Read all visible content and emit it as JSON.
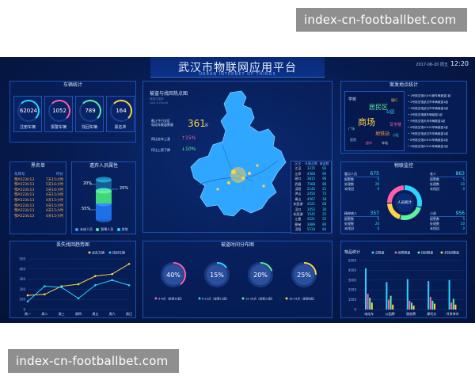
{
  "watermark": {
    "top": "index-cn-footballbet.com",
    "bottom": "index-cn-footballbet.com"
  },
  "header": {
    "title": "武汉市物联网应用平台",
    "subtitle": "URBAN INTERNET OF THINGS",
    "date": "2017-06-20 周五",
    "time": "12:20"
  },
  "vehicle_stats": {
    "title": "车辆统计",
    "items": [
      {
        "value": "62024",
        "label": "注册车辆",
        "color": "#2fd3ff"
      },
      {
        "value": "1052",
        "label": "报警车辆",
        "color": "#ff5fa8"
      },
      {
        "value": "789",
        "label": "找回车辆",
        "color": "#5cf0a0"
      },
      {
        "value": "164",
        "label": "黑名单",
        "color": "#ffd24a"
      }
    ]
  },
  "blacklist": {
    "title": "黑名单",
    "headers": [
      "车牌号",
      "时长"
    ],
    "rows": [
      [
        "鄂A523U13",
        "7天15小时"
      ],
      [
        "鄂A523U13",
        "5天16小时"
      ],
      [
        "鄂A523U13",
        "5天16小时"
      ],
      [
        "鄂A523U13",
        "4天15小时"
      ],
      [
        "鄂A523U13",
        "4天15小时"
      ],
      [
        "鄂A523U13",
        "4天15小时"
      ],
      [
        "鄂A523U13",
        "4天15小时"
      ],
      [
        "鄂A523U13",
        "4天15小时"
      ]
    ]
  },
  "lost_people": {
    "title": "遗弃人员属性",
    "pct_top": "20%",
    "pct_right": "25%",
    "pct_bottom": "55%",
    "legend": [
      "未成人员",
      "智障人员",
      "其他"
    ],
    "colors": [
      "#3aa0ff",
      "#5cf0a0",
      "#2fd3ff"
    ]
  },
  "map": {
    "title": "被盗与找回热点图",
    "tiny1": "被盗与找回",
    "tiny2": "Lost & Found",
    "summary_label": "截止今日全区\n电动车被盗数量",
    "summary_value": "361",
    "summary_unit": "起",
    "stat1_label": "同比去年上涨",
    "stat1_value": "15%",
    "stat2_label": "环比上家下降",
    "stat2_value": "10%"
  },
  "districts": {
    "headers": [
      "区名",
      "车辆总数",
      "被盗数"
    ],
    "rows": [
      [
        "江汉",
        "3315",
        "93"
      ],
      [
        "江岸",
        "4566",
        "90"
      ],
      [
        "硚口",
        "3815",
        "96"
      ],
      [
        "武昌",
        "7568",
        "88"
      ],
      [
        "汉阳",
        "2145",
        "21"
      ],
      [
        "洪山",
        "2456",
        "73"
      ],
      [
        "青山",
        "4567",
        "18"
      ],
      [
        "东西湖",
        "4521",
        "68"
      ],
      [
        "汉口",
        "3452",
        "30"
      ],
      [
        "东西湖",
        "1545",
        "25"
      ],
      [
        "江夏",
        "4521",
        "55"
      ],
      [
        "蔡甸",
        "3689",
        "80"
      ],
      [
        "汉阳",
        "5234",
        "84"
      ]
    ]
  },
  "hotspot": {
    "title": "案发地点统计",
    "cloud": [
      {
        "text": "居民区",
        "color": "#5cf0a0",
        "size": 8
      },
      {
        "text": "商场",
        "color": "#ffd24a",
        "size": 11
      },
      {
        "text": "地铁站",
        "color": "#ff9f43",
        "size": 6
      },
      {
        "text": "学校",
        "color": "#cfe3ff",
        "size": 5
      },
      {
        "text": "公园",
        "color": "#39e6ff",
        "size": 5
      },
      {
        "text": "写字楼",
        "color": "#ff5fa8",
        "size": 5
      },
      {
        "text": "医院",
        "color": "#9ac0ff",
        "size": 4
      },
      {
        "text": "车站",
        "color": "#cfe3ff",
        "size": 4
      },
      {
        "text": "银行",
        "color": "#ffd24a",
        "size": 4
      },
      {
        "text": "广场",
        "color": "#5cf0a0",
        "size": 4
      },
      {
        "text": "超市",
        "color": "#ff5fa8",
        "size": 4
      },
      {
        "text": "小区",
        "color": "#39e6ff",
        "size": 4
      }
    ],
    "list": [
      "1号航空馆SOHO被车辆被盗1起",
      "2号航空馆武汉市车辆被盗1起",
      "3号航空馆武汉市车辆被盗1起",
      "4号航空馆被车辆被盗1起",
      "5号航空馆天河车辆被盗1起",
      "6号航空馆SOHO车辆被盗1起",
      "7号航空馆武汉市车辆被盗1起",
      "8号航空馆SOHO车辆被盗1起",
      "9号航空馆SOHO车辆被盗1起"
    ]
  },
  "monitor": {
    "title": "物联监控",
    "center_label": "人员统计",
    "groups": [
      {
        "name": "重点人员",
        "value": "675",
        "rows": [
          [
            "报警数",
            "5"
          ],
          [
            "处理数",
            "20"
          ],
          [
            "未找回",
            "0"
          ]
        ]
      },
      {
        "name": "老人",
        "value": "863",
        "rows": [
          [
            "报警数",
            "5"
          ],
          [
            "处理数",
            "20"
          ],
          [
            "未找回",
            "0"
          ]
        ]
      },
      {
        "name": "精神病人",
        "value": "357",
        "rows": [
          [
            "报警数",
            "5"
          ],
          [
            "处理数",
            "20"
          ],
          [
            "未找回",
            "0"
          ]
        ]
      },
      {
        "name": "小孩",
        "value": "956",
        "rows": [
          [
            "报警数",
            "5"
          ],
          [
            "处理数",
            "20"
          ],
          [
            "未找回",
            "0"
          ]
        ]
      }
    ],
    "donut": [
      {
        "value": 30,
        "color": "#2fd3ff"
      },
      {
        "value": 25,
        "color": "#5cf0a0"
      },
      {
        "value": 20,
        "color": "#ffd24a"
      },
      {
        "value": 25,
        "color": "#ff5fa8"
      }
    ]
  },
  "trend_chart": {
    "title": "丢失找回趋势图",
    "chart_data": {
      "type": "line",
      "categories": [
        "周一",
        "周二",
        "周三",
        "周四",
        "周五",
        "周六",
        "周日"
      ],
      "series": [
        {
          "name": "丢失车辆",
          "values": [
            140,
            150,
            230,
            250,
            330,
            350,
            450
          ],
          "color": "#ffd24a"
        },
        {
          "name": "找回车辆",
          "values": [
            80,
            230,
            220,
            110,
            240,
            290,
            240
          ],
          "color": "#2fd3ff"
        }
      ],
      "ylim": [
        0,
        500
      ],
      "yticks": [
        0,
        100,
        200,
        300,
        400,
        500
      ]
    }
  },
  "time_dist": {
    "title": "被盗时间分布图",
    "items": [
      {
        "value": "40%",
        "label": "3-6点（发案35起）",
        "color": "#ff5fa8",
        "fill": 0.4
      },
      {
        "value": "15%",
        "label": "6-12点（发案15起）",
        "color": "#2fd3ff",
        "fill": 0.15
      },
      {
        "value": "20%",
        "label": "12-18点（发案12起）",
        "color": "#5cf0a0",
        "fill": 0.2
      },
      {
        "value": "25%",
        "label": "18-24点（发案8起）",
        "color": "#ffd24a",
        "fill": 0.25
      }
    ]
  },
  "goods_chart": {
    "title": "物品统计",
    "chart_data": {
      "type": "bar",
      "categories": [
        "电动车",
        "公园牌",
        "银杏牌",
        "摩托头",
        "共享单车"
      ],
      "series": [
        {
          "name": "总数量",
          "values": [
            4200,
            2800,
            3100,
            2900,
            3000
          ],
          "color": "#2fd3ff"
        },
        {
          "name": "报警数量",
          "values": [
            1600,
            1000,
            900,
            1300,
            700
          ],
          "color": "#ff5fa8"
        },
        {
          "name": "找回数量",
          "values": [
            1200,
            1400,
            700,
            900,
            1100
          ],
          "color": "#5cf0a0"
        },
        {
          "name": "未找回数量",
          "values": [
            700,
            500,
            400,
            600,
            500
          ],
          "color": "#ffd24a"
        }
      ],
      "ylim": [
        0,
        5000
      ],
      "yticks": [
        0,
        1000,
        2000,
        3000,
        4000,
        5000
      ]
    }
  }
}
